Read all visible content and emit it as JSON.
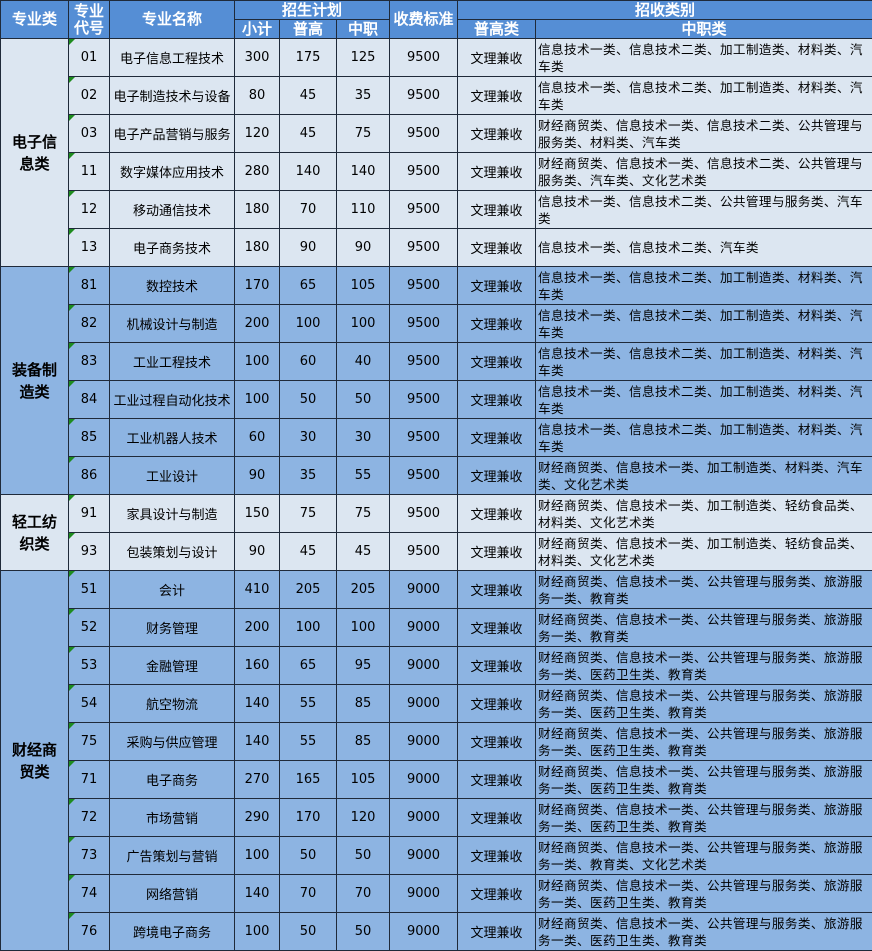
{
  "colors": {
    "header": "#558ed5",
    "light_row": "#dce6f1",
    "dark_row": "#8db4e2",
    "border": "#1f2a3a"
  },
  "header": {
    "category": "专业类",
    "code": "专业代号",
    "name": "专业名称",
    "plan": "招生计划",
    "subtotal": "小计",
    "general": "普高",
    "vocational": "中职",
    "fee": "收费标准",
    "admission": "招收类别",
    "general_type": "普高类",
    "vocational_type": "中职类"
  },
  "groups": [
    {
      "category": "电子信息类",
      "shade": "light",
      "rows": [
        {
          "code": "01",
          "name": "电子信息工程技术",
          "subtotal": "300",
          "general": "175",
          "vocational": "125",
          "fee": "9500",
          "general_type": "文理兼收",
          "vocational_type": "信息技术一类、信息技术二类、加工制造类、材料类、汽车类"
        },
        {
          "code": "02",
          "name": "电子制造技术与设备",
          "subtotal": "80",
          "general": "45",
          "vocational": "35",
          "fee": "9500",
          "general_type": "文理兼收",
          "vocational_type": "信息技术一类、信息技术二类、加工制造类、材料类、汽车类"
        },
        {
          "code": "03",
          "name": "电子产品营销与服务",
          "subtotal": "120",
          "general": "45",
          "vocational": "75",
          "fee": "9500",
          "general_type": "文理兼收",
          "vocational_type": "财经商贸类、信息技术一类、信息技术二类、公共管理与服务类、材料类、汽车类"
        },
        {
          "code": "11",
          "name": "数字媒体应用技术",
          "subtotal": "280",
          "general": "140",
          "vocational": "140",
          "fee": "9500",
          "general_type": "文理兼收",
          "vocational_type": "财经商贸类、信息技术一类、信息技术二类、公共管理与服务类、汽车类、文化艺术类"
        },
        {
          "code": "12",
          "name": "移动通信技术",
          "subtotal": "180",
          "general": "70",
          "vocational": "110",
          "fee": "9500",
          "general_type": "文理兼收",
          "vocational_type": "信息技术一类、信息技术二类、公共管理与服务类、汽车类"
        },
        {
          "code": "13",
          "name": "电子商务技术",
          "subtotal": "180",
          "general": "90",
          "vocational": "90",
          "fee": "9500",
          "general_type": "文理兼收",
          "vocational_type": "信息技术一类、信息技术二类、汽车类"
        }
      ]
    },
    {
      "category": "装备制造类",
      "shade": "dark",
      "rows": [
        {
          "code": "81",
          "name": "数控技术",
          "subtotal": "170",
          "general": "65",
          "vocational": "105",
          "fee": "9500",
          "general_type": "文理兼收",
          "vocational_type": "信息技术一类、信息技术二类、加工制造类、材料类、汽车类"
        },
        {
          "code": "82",
          "name": "机械设计与制造",
          "subtotal": "200",
          "general": "100",
          "vocational": "100",
          "fee": "9500",
          "general_type": "文理兼收",
          "vocational_type": "信息技术一类、信息技术二类、加工制造类、材料类、汽车类"
        },
        {
          "code": "83",
          "name": "工业工程技术",
          "subtotal": "100",
          "general": "60",
          "vocational": "40",
          "fee": "9500",
          "general_type": "文理兼收",
          "vocational_type": "信息技术一类、信息技术二类、加工制造类、材料类、汽车类"
        },
        {
          "code": "84",
          "name": "工业过程自动化技术",
          "subtotal": "100",
          "general": "50",
          "vocational": "50",
          "fee": "9500",
          "general_type": "文理兼收",
          "vocational_type": "信息技术一类、信息技术二类、加工制造类、材料类、汽车类"
        },
        {
          "code": "85",
          "name": "工业机器人技术",
          "subtotal": "60",
          "general": "30",
          "vocational": "30",
          "fee": "9500",
          "general_type": "文理兼收",
          "vocational_type": "信息技术一类、信息技术二类、加工制造类、材料类、汽车类"
        },
        {
          "code": "86",
          "name": "工业设计",
          "subtotal": "90",
          "general": "35",
          "vocational": "55",
          "fee": "9500",
          "general_type": "文理兼收",
          "vocational_type": "财经商贸类、信息技术一类、加工制造类、材料类、汽车类、文化艺术类"
        }
      ]
    },
    {
      "category": "轻工纺织类",
      "shade": "light",
      "rows": [
        {
          "code": "91",
          "name": "家具设计与制造",
          "subtotal": "150",
          "general": "75",
          "vocational": "75",
          "fee": "9500",
          "general_type": "文理兼收",
          "vocational_type": "财经商贸类、信息技术一类、加工制造类、轻纺食品类、材料类、文化艺术类"
        },
        {
          "code": "93",
          "name": "包装策划与设计",
          "subtotal": "90",
          "general": "45",
          "vocational": "45",
          "fee": "9500",
          "general_type": "文理兼收",
          "vocational_type": "财经商贸类、信息技术一类、加工制造类、轻纺食品类、材料类、文化艺术类"
        }
      ]
    },
    {
      "category": "财经商贸类",
      "shade": "dark",
      "rows": [
        {
          "code": "51",
          "name": "会计",
          "subtotal": "410",
          "general": "205",
          "vocational": "205",
          "fee": "9000",
          "general_type": "文理兼收",
          "vocational_type": "财经商贸类、信息技术一类、公共管理与服务类、旅游服务一类、教育类"
        },
        {
          "code": "52",
          "name": "财务管理",
          "subtotal": "200",
          "general": "100",
          "vocational": "100",
          "fee": "9000",
          "general_type": "文理兼收",
          "vocational_type": "财经商贸类、信息技术一类、公共管理与服务类、旅游服务一类、教育类"
        },
        {
          "code": "53",
          "name": "金融管理",
          "subtotal": "160",
          "general": "65",
          "vocational": "95",
          "fee": "9000",
          "general_type": "文理兼收",
          "vocational_type": "财经商贸类、信息技术一类、公共管理与服务类、旅游服务一类、医药卫生类、教育类"
        },
        {
          "code": "54",
          "name": "航空物流",
          "subtotal": "140",
          "general": "55",
          "vocational": "85",
          "fee": "9000",
          "general_type": "文理兼收",
          "vocational_type": "财经商贸类、信息技术一类、公共管理与服务类、旅游服务一类、医药卫生类、教育类"
        },
        {
          "code": "75",
          "name": "采购与供应管理",
          "subtotal": "140",
          "general": "55",
          "vocational": "85",
          "fee": "9000",
          "general_type": "文理兼收",
          "vocational_type": "财经商贸类、信息技术一类、公共管理与服务类、旅游服务一类、医药卫生类、教育类"
        },
        {
          "code": "71",
          "name": "电子商务",
          "subtotal": "270",
          "general": "165",
          "vocational": "105",
          "fee": "9000",
          "general_type": "文理兼收",
          "vocational_type": "财经商贸类、信息技术一类、公共管理与服务类、旅游服务一类、医药卫生类、教育类"
        },
        {
          "code": "72",
          "name": "市场营销",
          "subtotal": "290",
          "general": "170",
          "vocational": "120",
          "fee": "9000",
          "general_type": "文理兼收",
          "vocational_type": "财经商贸类、信息技术一类、公共管理与服务类、旅游服务一类、医药卫生类、教育类"
        },
        {
          "code": "73",
          "name": "广告策划与营销",
          "subtotal": "100",
          "general": "50",
          "vocational": "50",
          "fee": "9000",
          "general_type": "文理兼收",
          "vocational_type": "财经商贸类、信息技术一类、公共管理与服务类、旅游服务一类、教育类、文化艺术类"
        },
        {
          "code": "74",
          "name": "网络营销",
          "subtotal": "140",
          "general": "70",
          "vocational": "70",
          "fee": "9000",
          "general_type": "文理兼收",
          "vocational_type": "财经商贸类、信息技术一类、公共管理与服务类、旅游服务一类、医药卫生类、教育类"
        },
        {
          "code": "76",
          "name": "跨境电子商务",
          "subtotal": "100",
          "general": "50",
          "vocational": "50",
          "fee": "9000",
          "general_type": "文理兼收",
          "vocational_type": "财经商贸类、信息技术一类、公共管理与服务类、旅游服务一类、医药卫生类、教育类"
        }
      ]
    }
  ]
}
